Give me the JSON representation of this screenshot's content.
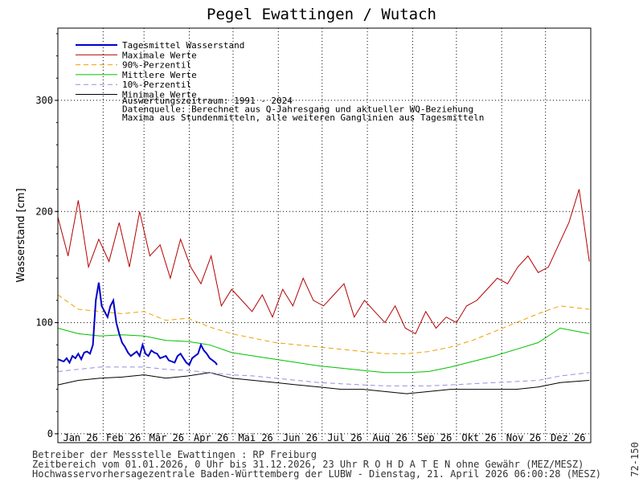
{
  "chart_data": {
    "type": "line",
    "title": "Pegel Ewattingen / Wutach",
    "ylabel": "Wasserstand [cm]",
    "ylim": [
      -8,
      365
    ],
    "yticks": [
      0,
      100,
      200,
      300
    ],
    "months": [
      "Jan 26",
      "Feb 26",
      "Mär 26",
      "Apr 26",
      "Mai 26",
      "Jun 26",
      "Jul 26",
      "Aug 26",
      "Sep 26",
      "Okt 26",
      "Nov 26",
      "Dez 26"
    ],
    "grid": true,
    "legend_position": "top-left",
    "colors": {
      "tagesmittel": "#0000c8",
      "maximal": "#b40000",
      "p90": "#f0a000",
      "mittel": "#00c000",
      "p10": "#9090e0",
      "minimal": "#000000"
    },
    "series": [
      {
        "name": "Tagesmittel Wasserstand",
        "key": "tagesmittel",
        "style": "solid",
        "x": [
          1,
          3,
          5,
          7,
          9,
          11,
          13,
          15,
          17,
          19,
          21,
          23,
          25,
          27,
          29,
          31,
          33,
          35,
          37,
          39,
          41,
          43,
          45,
          47,
          49,
          51,
          53,
          55,
          57,
          59,
          61,
          63,
          65,
          67,
          69,
          71,
          73,
          75,
          77,
          79,
          81,
          83,
          85,
          87,
          89,
          91,
          93,
          95,
          97,
          99,
          101,
          103,
          105,
          107,
          109,
          110
        ],
        "y": [
          67,
          66,
          65,
          68,
          64,
          70,
          68,
          72,
          67,
          73,
          74,
          72,
          80,
          120,
          136,
          115,
          110,
          105,
          115,
          120,
          100,
          90,
          82,
          78,
          73,
          70,
          72,
          74,
          70,
          80,
          72,
          70,
          75,
          73,
          72,
          68,
          69,
          70,
          66,
          65,
          64,
          70,
          72,
          68,
          64,
          62,
          68,
          70,
          72,
          80,
          75,
          72,
          68,
          66,
          64,
          62
        ]
      },
      {
        "name": "Maximale Werte",
        "key": "maximal",
        "style": "solid",
        "x": [
          1,
          8,
          15,
          22,
          29,
          36,
          43,
          50,
          57,
          64,
          71,
          78,
          85,
          92,
          99,
          106,
          113,
          120,
          127,
          134,
          141,
          148,
          155,
          162,
          169,
          176,
          183,
          190,
          197,
          204,
          211,
          218,
          225,
          232,
          239,
          246,
          253,
          260,
          267,
          274,
          281,
          288,
          295,
          302,
          309,
          316,
          323,
          330,
          337,
          344,
          351,
          358,
          365
        ],
        "y": [
          195,
          160,
          210,
          150,
          175,
          155,
          190,
          150,
          200,
          160,
          170,
          140,
          175,
          150,
          135,
          160,
          115,
          130,
          120,
          110,
          125,
          105,
          130,
          115,
          140,
          120,
          115,
          125,
          135,
          105,
          120,
          110,
          100,
          115,
          95,
          90,
          110,
          95,
          105,
          100,
          115,
          120,
          130,
          140,
          135,
          150,
          160,
          145,
          150,
          170,
          190,
          220,
          155
        ]
      },
      {
        "name": "90%-Perzentil",
        "key": "p90",
        "style": "dashed",
        "x": [
          1,
          15,
          30,
          45,
          60,
          75,
          90,
          105,
          120,
          135,
          150,
          165,
          180,
          195,
          210,
          225,
          240,
          255,
          270,
          285,
          300,
          315,
          330,
          345,
          365
        ],
        "y": [
          125,
          112,
          110,
          108,
          110,
          102,
          104,
          96,
          90,
          86,
          82,
          80,
          78,
          76,
          74,
          72,
          72,
          74,
          78,
          84,
          92,
          100,
          108,
          115,
          112
        ]
      },
      {
        "name": "Mittlere Werte",
        "key": "mittel",
        "style": "solid",
        "x": [
          1,
          15,
          30,
          45,
          60,
          75,
          90,
          105,
          120,
          135,
          150,
          165,
          180,
          195,
          210,
          225,
          240,
          255,
          270,
          285,
          300,
          315,
          330,
          345,
          365
        ],
        "y": [
          95,
          90,
          88,
          89,
          88,
          84,
          83,
          80,
          73,
          70,
          67,
          64,
          61,
          59,
          57,
          55,
          55,
          56,
          60,
          65,
          70,
          76,
          82,
          95,
          90
        ]
      },
      {
        "name": "10%-Perzentil",
        "key": "p10",
        "style": "dashed",
        "x": [
          1,
          15,
          30,
          45,
          60,
          75,
          90,
          105,
          120,
          135,
          150,
          165,
          180,
          195,
          210,
          225,
          240,
          255,
          270,
          285,
          300,
          315,
          330,
          345,
          365
        ],
        "y": [
          56,
          58,
          60,
          60,
          60,
          58,
          57,
          55,
          53,
          52,
          50,
          48,
          46,
          45,
          44,
          43,
          43,
          43,
          44,
          45,
          46,
          47,
          48,
          52,
          55
        ]
      },
      {
        "name": "Minimale Werte",
        "key": "minimal",
        "style": "solid",
        "x": [
          1,
          15,
          30,
          45,
          60,
          75,
          90,
          105,
          120,
          135,
          150,
          165,
          180,
          195,
          210,
          225,
          240,
          255,
          270,
          285,
          300,
          315,
          330,
          345,
          365
        ],
        "y": [
          44,
          48,
          50,
          51,
          53,
          50,
          52,
          55,
          50,
          48,
          46,
          44,
          42,
          40,
          40,
          38,
          36,
          38,
          40,
          40,
          40,
          40,
          42,
          46,
          48
        ]
      }
    ],
    "legend_notes": [
      "Auswertungszeitraum: 1991 - 2024",
      "Datenquelle: Berechnet aus Q-Jahresgang und aktueller WQ-Beziehung",
      "Maxima aus Stundenmitteln, alle weiteren Ganglinien aus Tagesmitteln"
    ]
  },
  "footer": {
    "line1": "Betreiber der Messstelle Ewattingen : RP Freiburg",
    "line2": "Zeitbereich vom 01.01.2026, 0 Uhr bis 31.12.2026, 23 Uhr    R O H D A T E N ohne Gewähr (MEZ/MESZ)",
    "line3": "Hochwasservorhersagezentrale Baden-Württemberg der LUBW - Dienstag, 21. April 2026 06:00:28 (MESZ)",
    "side": "72-150"
  }
}
